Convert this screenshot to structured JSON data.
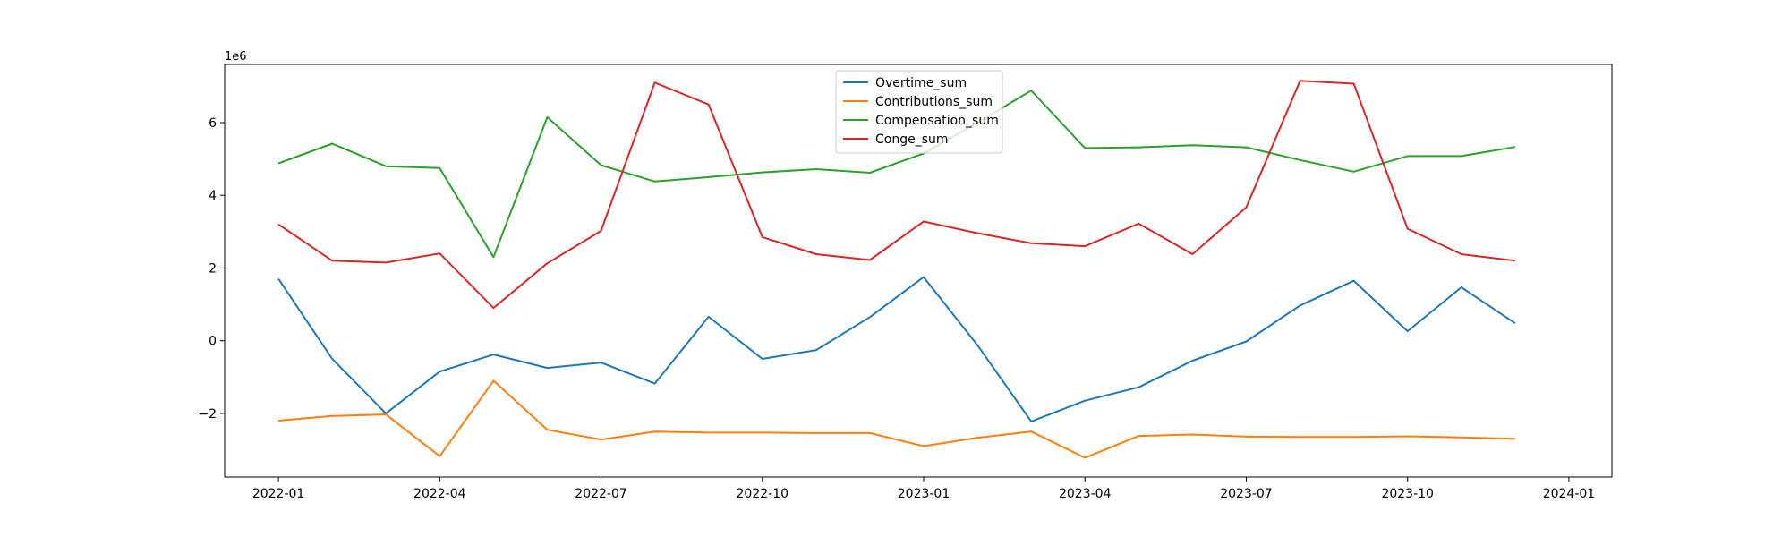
{
  "chart_data": {
    "type": "line",
    "title": "",
    "xlabel": "",
    "ylabel": "",
    "y_offset_label": "1e6",
    "x": [
      "2022-01",
      "2022-02",
      "2022-03",
      "2022-04",
      "2022-05",
      "2022-06",
      "2022-07",
      "2022-08",
      "2022-09",
      "2022-10",
      "2022-11",
      "2022-12",
      "2023-01",
      "2023-02",
      "2023-03",
      "2023-04",
      "2023-05",
      "2023-06",
      "2023-07",
      "2023-08",
      "2023-09",
      "2023-10",
      "2023-11",
      "2023-12"
    ],
    "xlim": [
      -1.0,
      24.8
    ],
    "ylim": [
      -3.75,
      7.6
    ],
    "xticks": [
      {
        "pos": 0,
        "label": "2022-01"
      },
      {
        "pos": 3,
        "label": "2022-04"
      },
      {
        "pos": 6,
        "label": "2022-07"
      },
      {
        "pos": 9,
        "label": "2022-10"
      },
      {
        "pos": 12,
        "label": "2023-01"
      },
      {
        "pos": 15,
        "label": "2023-04"
      },
      {
        "pos": 18,
        "label": "2023-07"
      },
      {
        "pos": 21,
        "label": "2023-10"
      },
      {
        "pos": 24,
        "label": "2024-01"
      }
    ],
    "yticks": [
      -2,
      0,
      2,
      4,
      6
    ],
    "legend_position": "upper-center",
    "series": [
      {
        "name": "Overtime_sum",
        "color": "#1f77b4",
        "values": [
          1.7,
          -0.5,
          -2.0,
          -0.85,
          -0.38,
          -0.75,
          -0.6,
          -1.18,
          0.66,
          -0.5,
          -0.26,
          0.65,
          1.75,
          -0.12,
          -2.22,
          -1.65,
          -1.28,
          -0.55,
          -0.02,
          0.97,
          1.65,
          0.26,
          1.47,
          0.48
        ]
      },
      {
        "name": "Contributions_sum",
        "color": "#ff7f0e",
        "values": [
          -2.2,
          -2.07,
          -2.03,
          -3.18,
          -1.1,
          -2.45,
          -2.72,
          -2.5,
          -2.53,
          -2.53,
          -2.54,
          -2.54,
          -2.9,
          -2.67,
          -2.5,
          -3.22,
          -2.62,
          -2.58,
          -2.64,
          -2.65,
          -2.65,
          -2.63,
          -2.66,
          -2.7
        ]
      },
      {
        "name": "Compensation_sum",
        "color": "#2ca02c",
        "values": [
          4.88,
          5.42,
          4.8,
          4.75,
          2.3,
          6.15,
          4.83,
          4.38,
          4.5,
          4.63,
          4.72,
          4.62,
          5.15,
          6.0,
          6.88,
          5.3,
          5.32,
          5.38,
          5.32,
          4.97,
          4.65,
          5.08,
          5.08,
          5.33
        ]
      },
      {
        "name": "Conge_sum",
        "color": "#d62728",
        "values": [
          3.2,
          2.2,
          2.15,
          2.4,
          0.9,
          2.13,
          3.02,
          7.1,
          6.5,
          2.85,
          2.38,
          2.22,
          3.28,
          2.96,
          2.68,
          2.6,
          3.22,
          2.38,
          3.67,
          7.15,
          7.07,
          3.08,
          2.38,
          2.2
        ]
      }
    ]
  }
}
